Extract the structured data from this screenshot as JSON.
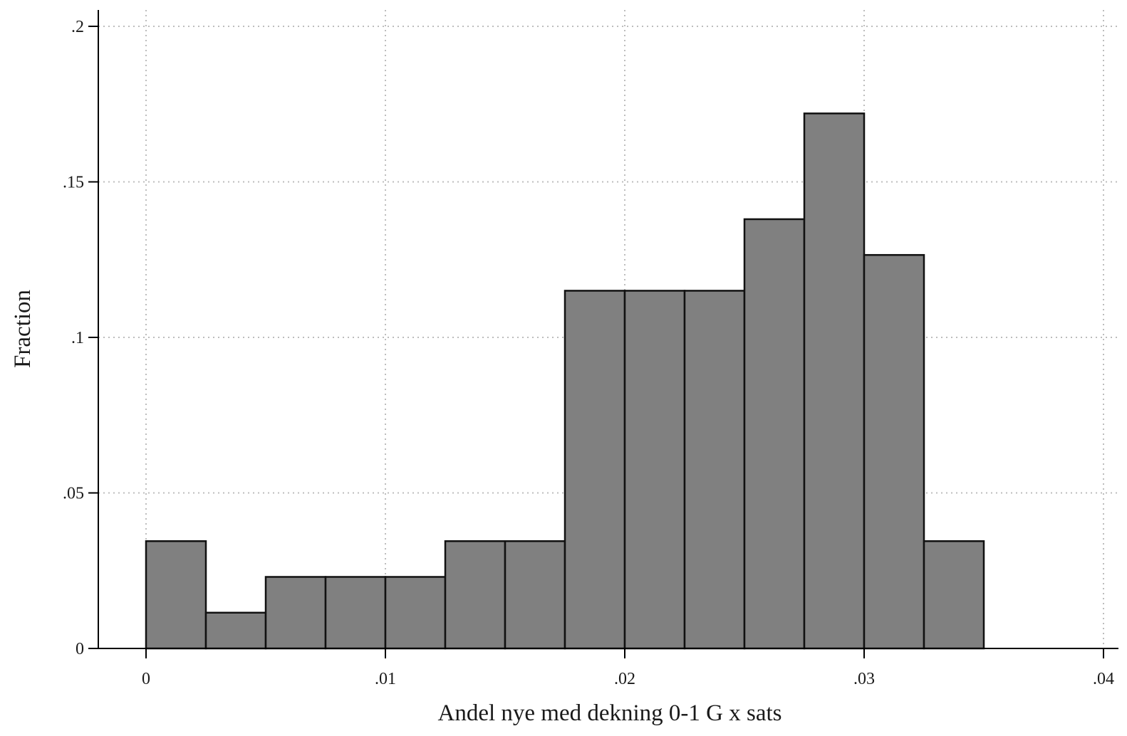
{
  "chart_data": {
    "type": "bar",
    "xlabel": "Andel nye med dekning 0-1 G x sats",
    "ylabel": "Fraction",
    "bin_width": 0.0025,
    "bins": [
      {
        "x0": 0.0,
        "x1": 0.0025,
        "value": 0.0345
      },
      {
        "x0": 0.0025,
        "x1": 0.005,
        "value": 0.0115
      },
      {
        "x0": 0.005,
        "x1": 0.0075,
        "value": 0.023
      },
      {
        "x0": 0.0075,
        "x1": 0.01,
        "value": 0.023
      },
      {
        "x0": 0.01,
        "x1": 0.0125,
        "value": 0.023
      },
      {
        "x0": 0.0125,
        "x1": 0.015,
        "value": 0.0345
      },
      {
        "x0": 0.015,
        "x1": 0.0175,
        "value": 0.0345
      },
      {
        "x0": 0.0175,
        "x1": 0.02,
        "value": 0.115
      },
      {
        "x0": 0.02,
        "x1": 0.0225,
        "value": 0.115
      },
      {
        "x0": 0.0225,
        "x1": 0.025,
        "value": 0.115
      },
      {
        "x0": 0.025,
        "x1": 0.0275,
        "value": 0.138
      },
      {
        "x0": 0.0275,
        "x1": 0.03,
        "value": 0.172
      },
      {
        "x0": 0.03,
        "x1": 0.0325,
        "value": 0.1265
      },
      {
        "x0": 0.0325,
        "x1": 0.035,
        "value": 0.0345
      }
    ],
    "x_ticks": [
      {
        "value": 0.0,
        "label": "0"
      },
      {
        "value": 0.01,
        "label": ".01"
      },
      {
        "value": 0.02,
        "label": ".02"
      },
      {
        "value": 0.03,
        "label": ".03"
      },
      {
        "value": 0.04,
        "label": ".04"
      }
    ],
    "y_ticks": [
      {
        "value": 0.0,
        "label": "0"
      },
      {
        "value": 0.05,
        "label": ".05"
      },
      {
        "value": 0.1,
        "label": ".1"
      },
      {
        "value": 0.15,
        "label": ".15"
      },
      {
        "value": 0.2,
        "label": ".2"
      }
    ],
    "xlim": [
      -0.002,
      0.0405
    ],
    "ylim": [
      0,
      0.2
    ],
    "grid": true,
    "colors": {
      "bar_fill": "#808080",
      "bar_stroke": "#111111",
      "grid": "#bdbdbd",
      "axis": "#000000"
    }
  }
}
